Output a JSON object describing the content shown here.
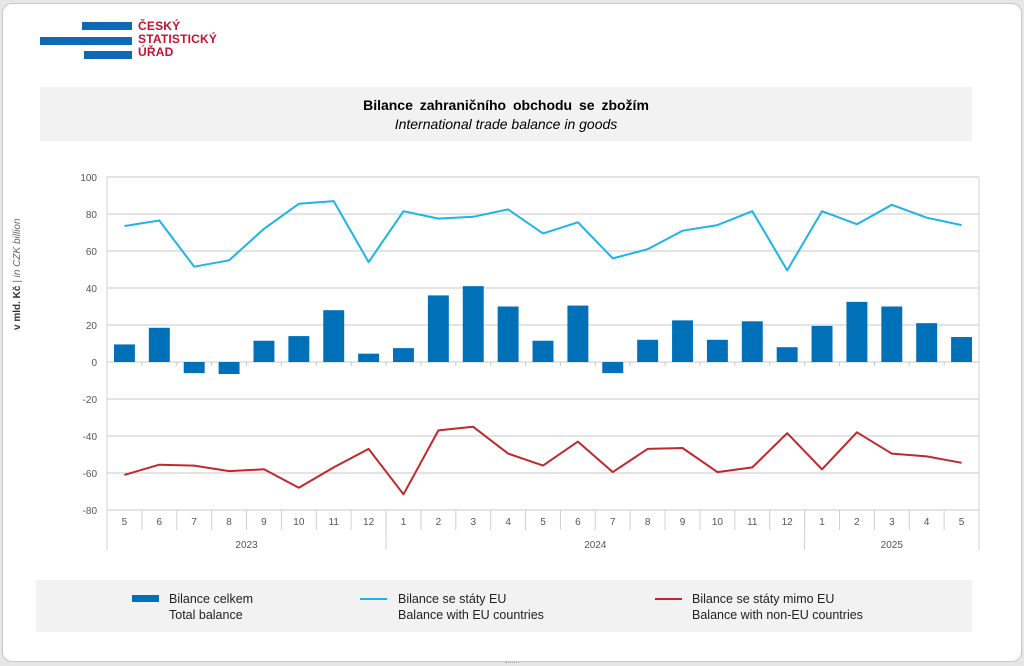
{
  "logo": {
    "line1": "ČESKÝ",
    "line2": "STATISTICKÝ",
    "line3": "ÚŘAD"
  },
  "header": {
    "title_cz": "Bilance zahraničního obchodu se zbožím",
    "title_en": "International trade balance in goods"
  },
  "chart_data": {
    "type": "bar",
    "title": "Bilance zahraničního obchodu se zbožím",
    "subtitle": "International trade balance in goods",
    "ylabel_cz": "v mld. Kč",
    "ylabel_sep": " | ",
    "ylabel_en": "in CZK billion",
    "ylim": [
      -80,
      100
    ],
    "yticks": [
      100,
      80,
      60,
      40,
      20,
      0,
      -20,
      -40,
      -60,
      -80
    ],
    "grid": true,
    "categories": [
      "5",
      "6",
      "7",
      "8",
      "9",
      "10",
      "11",
      "12",
      "1",
      "2",
      "3",
      "4",
      "5",
      "6",
      "7",
      "8",
      "9",
      "10",
      "11",
      "12",
      "1",
      "2",
      "3",
      "4",
      "5"
    ],
    "year_groups": [
      {
        "label": "2023",
        "count": 8
      },
      {
        "label": "2024",
        "count": 12
      },
      {
        "label": "2025",
        "count": 5
      }
    ],
    "series": [
      {
        "name": "Bilance celkem",
        "name_en": "Total balance",
        "type": "bar",
        "color": "#0070b8",
        "values": [
          9.5,
          18.5,
          -6,
          -6.5,
          11.5,
          14,
          28,
          4.5,
          7.5,
          36,
          41,
          30,
          11.5,
          30.5,
          -6,
          12,
          22.5,
          12,
          22,
          8,
          19.5,
          32.5,
          30,
          21,
          13.5
        ]
      },
      {
        "name": "Bilance se státy EU",
        "name_en": "Balance with EU countries",
        "type": "line",
        "color": "#1eb4e8",
        "values": [
          73.5,
          76.5,
          51.5,
          55,
          72,
          85.5,
          87,
          54,
          81.5,
          77.5,
          78.5,
          82.5,
          69.5,
          75.5,
          56,
          61,
          71,
          74,
          81.5,
          49.5,
          81.5,
          74.5,
          85,
          78,
          74
        ]
      },
      {
        "name": "Bilance se státy mimo EU",
        "name_en": "Balance with non-EU countries",
        "type": "line",
        "color": "#c0282d",
        "values": [
          -61,
          -55.5,
          -56,
          -59,
          -58,
          -68,
          -57,
          -47,
          -71.5,
          -37,
          -35,
          -49.5,
          -56,
          -43,
          -59.5,
          -47,
          -46.5,
          -59.5,
          -57,
          -38.5,
          -58,
          -38,
          -49.5,
          -51,
          -54.5
        ]
      }
    ],
    "legend_position": "bottom"
  }
}
